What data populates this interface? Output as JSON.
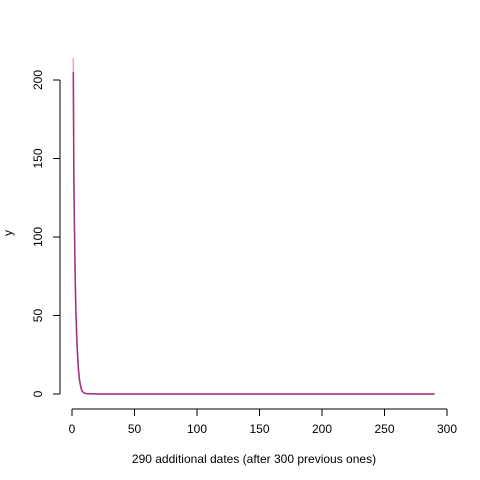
{
  "chart_data": {
    "type": "line",
    "title": "",
    "xlabel": "290 additional dates (after 300 previous ones)",
    "ylabel": "y",
    "xlim": [
      0,
      300
    ],
    "ylim": [
      0,
      210
    ],
    "x_ticks": [
      0,
      50,
      100,
      150,
      200,
      250,
      300
    ],
    "y_ticks": [
      0,
      50,
      100,
      150,
      200
    ],
    "grid": false,
    "legend": "none",
    "series": [
      {
        "color": "#ff99cc",
        "x": [
          1,
          1.5,
          2,
          2.5,
          3,
          4,
          5,
          6,
          7,
          8,
          9,
          10,
          12,
          15,
          20,
          50,
          100,
          150,
          200,
          250,
          290
        ],
        "y": [
          214,
          130,
          100,
          75,
          52,
          30,
          16,
          8,
          4,
          2,
          1,
          0.5,
          0.2,
          0.1,
          0,
          0,
          0,
          0,
          0,
          0,
          0
        ]
      },
      {
        "color": "#a03080",
        "x": [
          1,
          1.5,
          2,
          2.5,
          3,
          4,
          5,
          6,
          7,
          8,
          9,
          10,
          12,
          15,
          20,
          50,
          100,
          150,
          200,
          250,
          290
        ],
        "y": [
          205,
          135,
          105,
          78,
          55,
          32,
          17,
          9,
          4.5,
          2,
          1,
          0.5,
          0.2,
          0.1,
          0,
          0,
          0,
          0,
          0,
          0,
          0
        ]
      }
    ]
  }
}
